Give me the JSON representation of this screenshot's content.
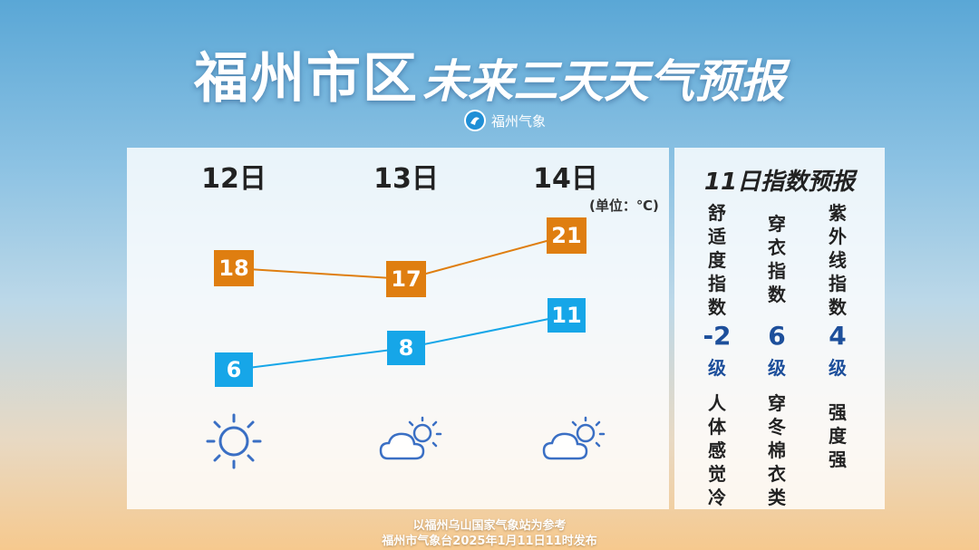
{
  "header": {
    "title_main": "福州市区",
    "title_sub": "未来三天天气预报",
    "brand": "福州气象"
  },
  "forecast": {
    "unit": "(单位：℃)",
    "days": [
      {
        "date": "12日",
        "high": "18",
        "low": "6",
        "weather_icon": "sunny-icon"
      },
      {
        "date": "13日",
        "high": "17",
        "low": "8",
        "weather_icon": "partly-cloudy-icon"
      },
      {
        "date": "14日",
        "high": "21",
        "low": "11",
        "weather_icon": "partly-cloudy-icon"
      }
    ],
    "colors": {
      "high": "#df7e10",
      "low": "#16a6e8",
      "icon": "#3a6fc4"
    }
  },
  "indices": {
    "title": "11日指数预报",
    "items": [
      {
        "name": "舒适度指数",
        "level": "-2",
        "level_unit": "级",
        "desc": "人体感觉冷"
      },
      {
        "name": "穿衣指数",
        "level": "6",
        "level_unit": "级",
        "desc": "穿冬棉衣类"
      },
      {
        "name": "紫外线指数",
        "level": "4",
        "level_unit": "级",
        "desc": "强度强"
      }
    ]
  },
  "footer": {
    "line1": "以福州乌山国家气象站为参考",
    "line2": "福州市气象台2025年1月11日11时发布"
  }
}
